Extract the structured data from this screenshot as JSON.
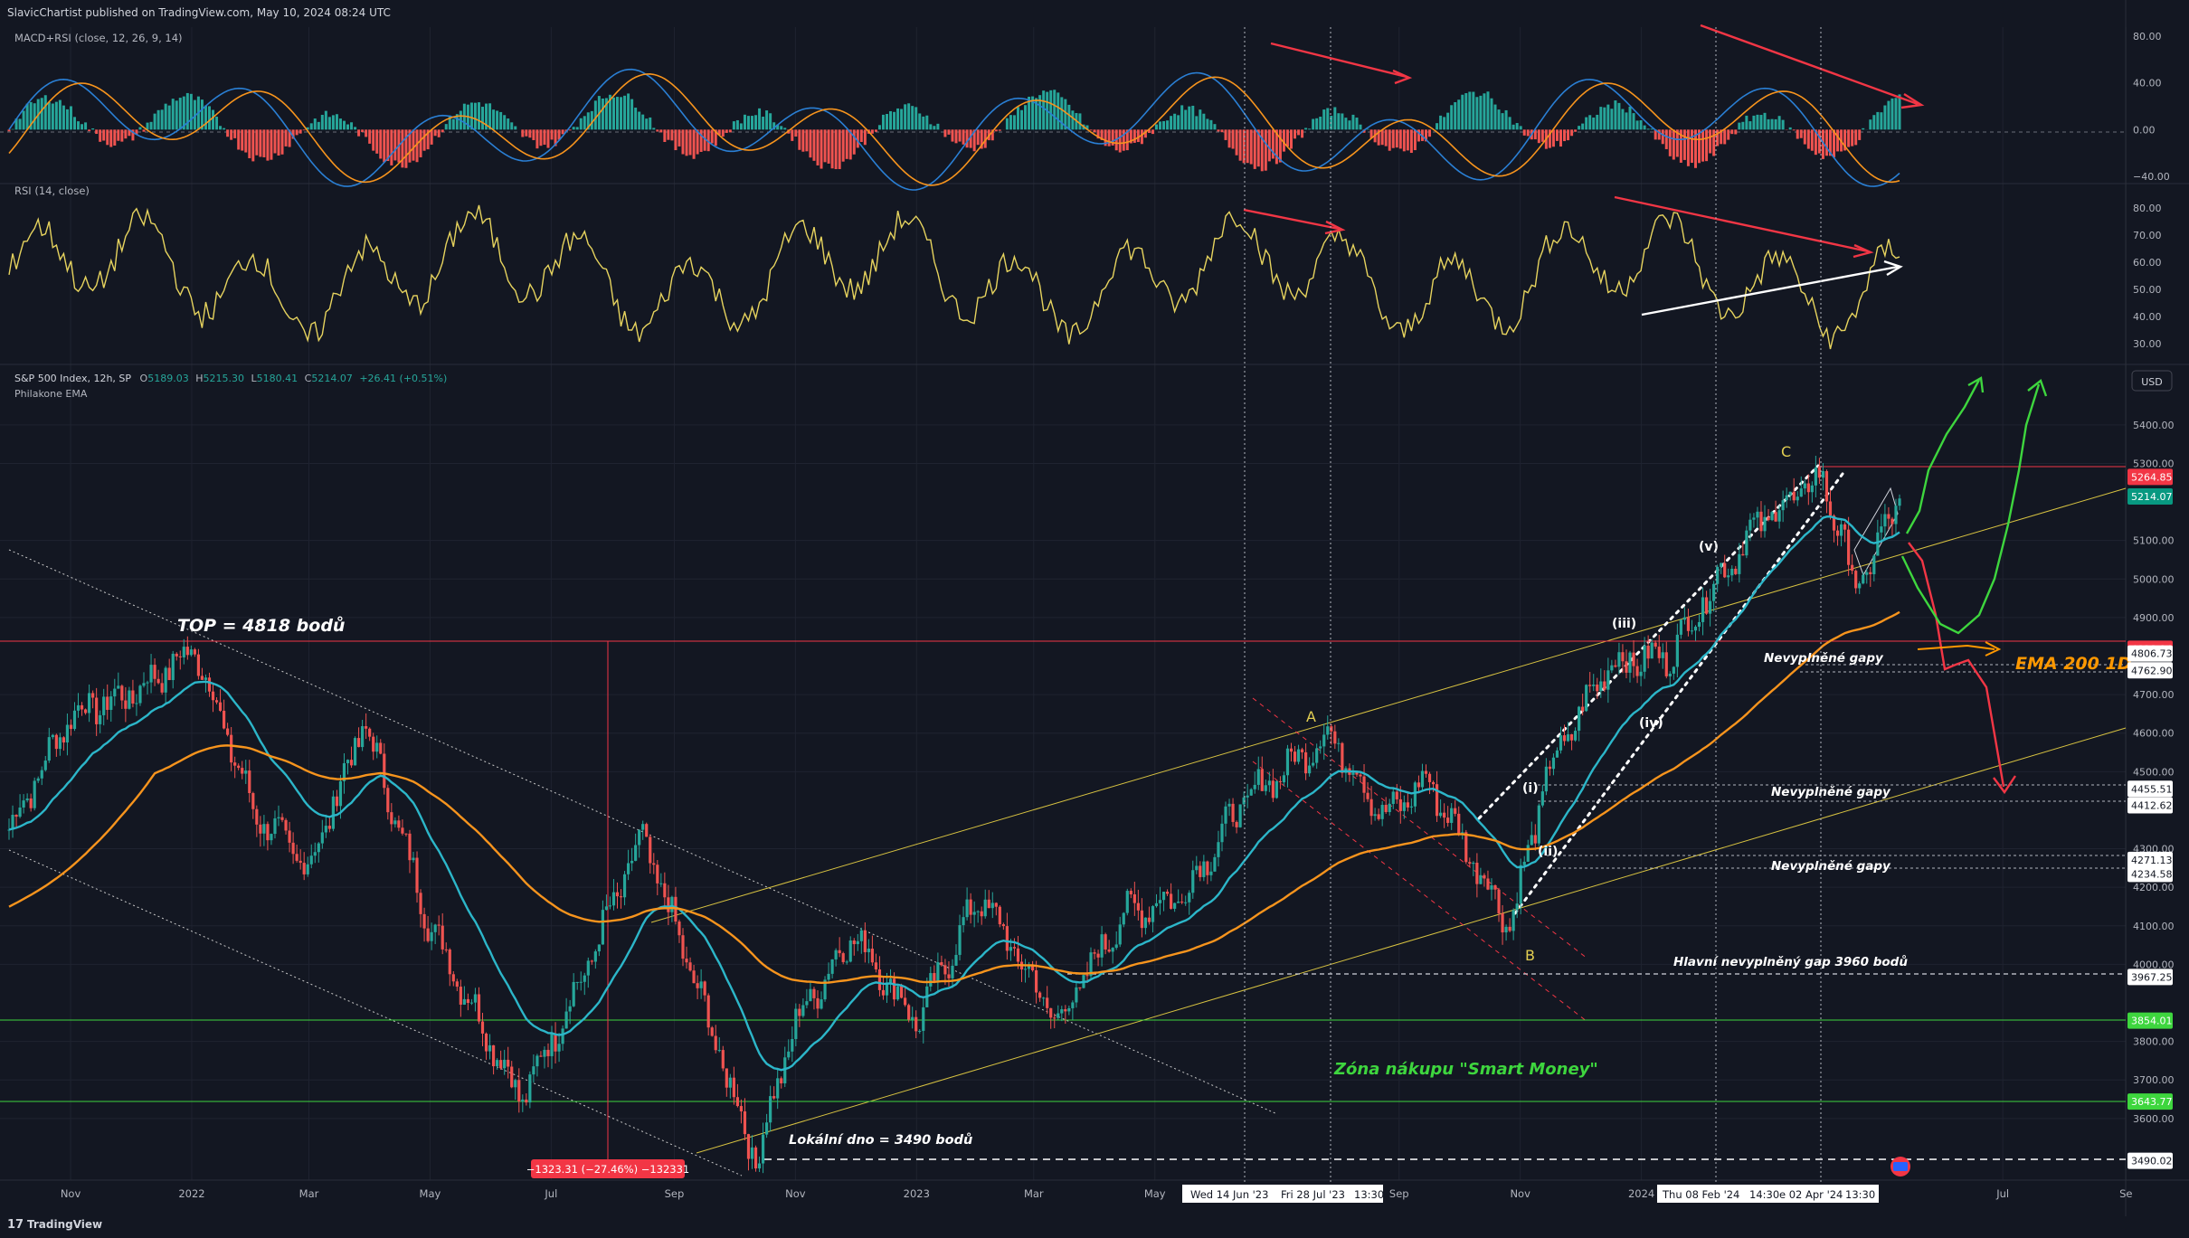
{
  "header": {
    "publisher": "SlavicChartist published on TradingView.com, May 10, 2024 08:24 UTC"
  },
  "footer": {
    "brand": "TradingView"
  },
  "colors": {
    "bg": "#131722",
    "grid": "#1f2330",
    "axis_text": "#b2b5be",
    "up": "#26a69a",
    "down": "#ef5350",
    "ema_fast": "#2cb6c9",
    "ema_slow": "#f7941d",
    "rsi": "#e6d35e",
    "macd": "#2a7fd4",
    "signal": "#f7941d",
    "annot_red": "#f23645",
    "annot_green": "#3ed63e",
    "annot_yellow": "#e3cf52",
    "white": "#ffffff",
    "orange_text": "#ff9800"
  },
  "chart_data": [
    {
      "type": "bar",
      "panel": "MACD+RSI (close, 12, 26, 9, 14)",
      "title": "MACD+RSI (close, 12, 26, 9, 14)",
      "y_ticks": [
        "80.00",
        "40.00",
        "0.00",
        "−40.00"
      ],
      "ylim": [
        -40,
        80
      ],
      "series": [
        {
          "name": "histogram",
          "description_values": "oscillates around 0 between about -40 and +45"
        }
      ]
    },
    {
      "type": "line",
      "panel": "RSI",
      "title": "RSI (14, close)",
      "y_ticks": [
        "80.00",
        "70.00",
        "60.00",
        "50.00",
        "40.00",
        "30.00"
      ],
      "ylim": [
        25,
        85
      ]
    },
    {
      "type": "line",
      "panel": "price",
      "title": "S&P 500 Index, 12h, SP",
      "ohlc": {
        "O_label": "O",
        "O": "5189.03",
        "H_label": "H",
        "H": "5215.30",
        "L_label": "L",
        "L": "5180.41",
        "C_label": "C",
        "C": "5214.07",
        "change": "+26.41 (+0.51%)"
      },
      "indicator_name": "Philakone EMA",
      "currency": "USD",
      "y_ticks": [
        "5400.00",
        "5300.00",
        "5100.00",
        "5000.00",
        "4900.00",
        "4700.00",
        "4600.00",
        "4500.00",
        "4300.00",
        "4200.00",
        "4100.00",
        "4000.00",
        "3800.00",
        "3700.00",
        "3600.00"
      ],
      "ylim": [
        3440,
        5470
      ],
      "x_ticks": [
        "Nov",
        "2022",
        "Mar",
        "May",
        "Jul",
        "Sep",
        "Nov",
        "2023",
        "Mar",
        "May",
        "Sep",
        "Nov",
        "2024",
        "Jul",
        "Se"
      ],
      "price_tags": [
        {
          "value": "5264.85",
          "bg": "#f23645"
        },
        {
          "value": "5214.07",
          "bg": "#089981"
        },
        {
          "value": "4818.94",
          "bg": "#f23645"
        },
        {
          "value": "4806.73",
          "bg": "#ffffff"
        },
        {
          "value": "4762.90",
          "bg": "#ffffff"
        },
        {
          "value": "4455.51",
          "bg": "#ffffff"
        },
        {
          "value": "4412.62",
          "bg": "#ffffff"
        },
        {
          "value": "4271.13",
          "bg": "#ffffff"
        },
        {
          "value": "4234.58",
          "bg": "#ffffff"
        },
        {
          "value": "3967.25",
          "bg": "#ffffff"
        },
        {
          "value": "3854.01",
          "bg": "#3ed63e"
        },
        {
          "value": "3643.77",
          "bg": "#3ed63e"
        },
        {
          "value": "3490.02",
          "bg": "#ffffff"
        }
      ],
      "close_series": {
        "x": [
          "2021-10-01",
          "2021-11-01",
          "2021-12-01",
          "2022-01-03",
          "2022-02-01",
          "2022-03-01",
          "2022-03-29",
          "2022-05-01",
          "2022-06-16",
          "2022-07-15",
          "2022-08-16",
          "2022-09-15",
          "2022-10-12",
          "2022-11-01",
          "2022-11-30",
          "2023-01-01",
          "2023-02-02",
          "2023-03-13",
          "2023-04-15",
          "2023-05-15",
          "2023-06-14",
          "2023-07-28",
          "2023-08-25",
          "2023-09-15",
          "2023-10-27",
          "2023-11-15",
          "2023-12-15",
          "2024-01-15",
          "2024-02-08",
          "2024-03-01",
          "2024-04-01",
          "2024-04-19",
          "2024-05-10"
        ],
        "values": [
          4350,
          4650,
          4700,
          4818,
          4400,
          4250,
          4630,
          4100,
          3650,
          3950,
          4330,
          3900,
          3490,
          3850,
          4080,
          3850,
          4180,
          3850,
          4130,
          4180,
          4420,
          4600,
          4380,
          4480,
          4103,
          4500,
          4780,
          4800,
          5000,
          5150,
          5264,
          4970,
          5214
        ]
      },
      "annotations": {
        "top": "TOP = 4818 bodů",
        "bottom": "Lokální dno = 3490 bodů",
        "drawdown": "−1323.31 (−27.46%) −132331",
        "gaps": "Nevyplněné gapy",
        "main_gap": "Hlavní nevyplněný gap 3960 bodů",
        "zone": "Zóna nákupu \"Smart Money\"",
        "ema": "EMA 200 1D",
        "waveA": "A",
        "waveB": "B",
        "waveC": "C",
        "w_i": "(i)",
        "w_ii": "(ii)",
        "w_iii": "(iii)",
        "w_iv": "(iv)",
        "w_v": "(v)"
      },
      "crosshair_dates": [
        "Wed 14 Jun '23",
        "Fri 28 Jul '23",
        "13:30",
        "Thu 08 Feb '24",
        "14:30",
        "e 02 Apr '24",
        "13:30"
      ]
    }
  ]
}
